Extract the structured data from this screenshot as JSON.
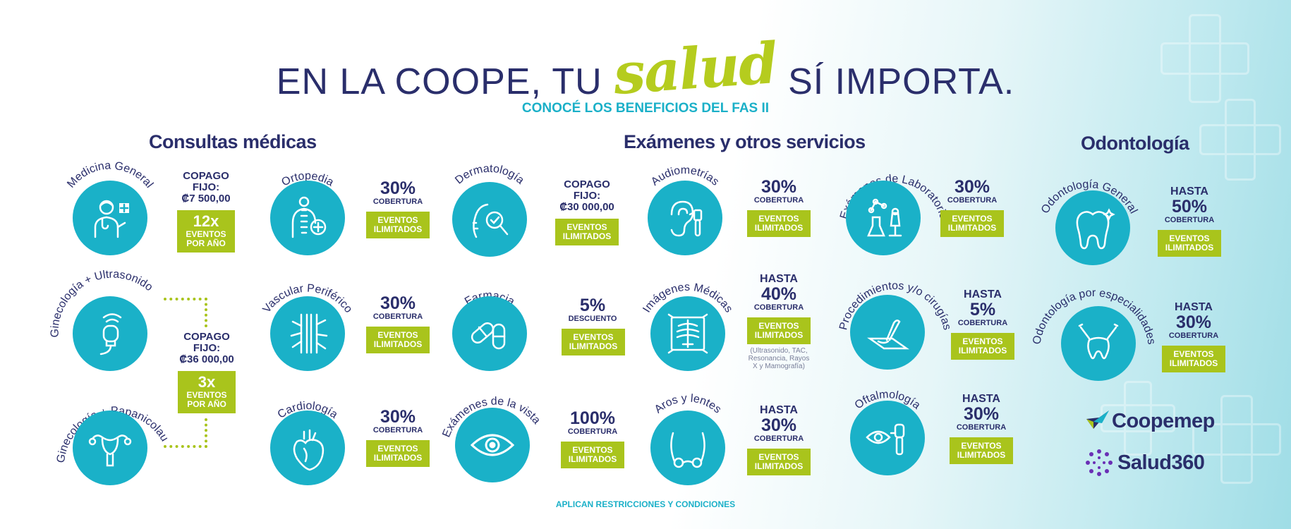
{
  "header": {
    "headline_left": "EN LA COOPE, TU",
    "headline_script": "salud",
    "headline_right": "SÍ IMPORTA.",
    "subheadline": "CONOCÉ LOS BENEFICIOS DEL FAS II"
  },
  "sections": {
    "consultas": "Consultas médicas",
    "examenes": "Exámenes y otros servicios",
    "odontologia": "Odontología"
  },
  "items": {
    "medicina_general": {
      "label": "Medicina General",
      "copago": "COPAGO",
      "fijo": "FIJO:",
      "amount": "₡7 500,00",
      "badge_num": "12x",
      "badge_text": "EVENTOS POR AÑO"
    },
    "ginecologia_ultrasonido": {
      "label": "Ginecología + Ultrasonido"
    },
    "ginecologia_papanicolau": {
      "label": "Ginecología + Papanicolau"
    },
    "gineco_shared": {
      "copago": "COPAGO",
      "fijo": "FIJO:",
      "amount": "₡36 000,00",
      "badge_num": "3x",
      "badge_text": "EVENTOS POR AÑO"
    },
    "ortopedia": {
      "label": "Ortopedia",
      "pct": "30%",
      "sub": "COBERTURA",
      "badge": "EVENTOS ILIMITADOS"
    },
    "vascular": {
      "label": "Vascular Periférico",
      "pct": "30%",
      "sub": "COBERTURA",
      "badge": "EVENTOS ILIMITADOS"
    },
    "cardiologia": {
      "label": "Cardiología",
      "pct": "30%",
      "sub": "COBERTURA",
      "badge": "EVENTOS ILIMITADOS"
    },
    "dermatologia": {
      "label": "Dermatología",
      "copago": "COPAGO",
      "fijo": "FIJO:",
      "amount": "₡30 000,00",
      "badge": "EVENTOS ILIMITADOS"
    },
    "farmacia": {
      "label": "Farmacia",
      "pct": "5%",
      "sub": "DESCUENTO",
      "badge": "EVENTOS ILIMITADOS"
    },
    "examenes_vista": {
      "label": "Exámenes de la vista",
      "pct": "100%",
      "sub": "COBERTURA",
      "badge": "EVENTOS ILIMITADOS"
    },
    "audiometrias": {
      "label": "Audiometrías",
      "pct": "30%",
      "sub": "COBERTURA",
      "badge": "EVENTOS ILIMITADOS"
    },
    "imagenes": {
      "label": "Imágenes Médicas",
      "hasta": "HASTA",
      "pct": "40%",
      "sub": "COBERTURA",
      "badge": "EVENTOS ILIMITADOS",
      "note": "(Ultrasonido, TAC, Resonancia, Rayos X y Mamografía)"
    },
    "aros": {
      "label": "Aros y lentes",
      "hasta": "HASTA",
      "pct": "30%",
      "sub": "COBERTURA",
      "badge": "EVENTOS ILIMITADOS"
    },
    "laboratorio": {
      "label": "Exámenes de Laboratorio",
      "pct": "30%",
      "sub": "COBERTURA",
      "badge": "EVENTOS ILIMITADOS"
    },
    "procedimientos": {
      "label": "Procedimientos y/o cirugías",
      "hasta": "HASTA",
      "pct": "5%",
      "sub": "COBERTURA",
      "badge": "EVENTOS ILIMITADOS"
    },
    "oftalmologia": {
      "label": "Oftalmología",
      "hasta": "HASTA",
      "pct": "30%",
      "sub": "COBERTURA",
      "badge": "EVENTOS ILIMITADOS"
    },
    "odonto_general": {
      "label": "Odontología General",
      "hasta": "HASTA",
      "pct": "50%",
      "sub": "COBERTURA",
      "badge": "EVENTOS ILIMITADOS"
    },
    "odonto_especialidades": {
      "label": "Odontología por especialidades",
      "hasta": "HASTA",
      "pct": "30%",
      "sub": "COBERTURA",
      "badge": "EVENTOS ILIMITADOS"
    }
  },
  "footer": {
    "disclaimer": "APLICAN RESTRICCIONES Y CONDICIONES"
  },
  "logos": {
    "coopemep": "Coopemep",
    "salud360": "Salud360"
  },
  "colors": {
    "navy": "#2a2e6b",
    "teal": "#1ab1c8",
    "lime": "#a9c41c"
  }
}
